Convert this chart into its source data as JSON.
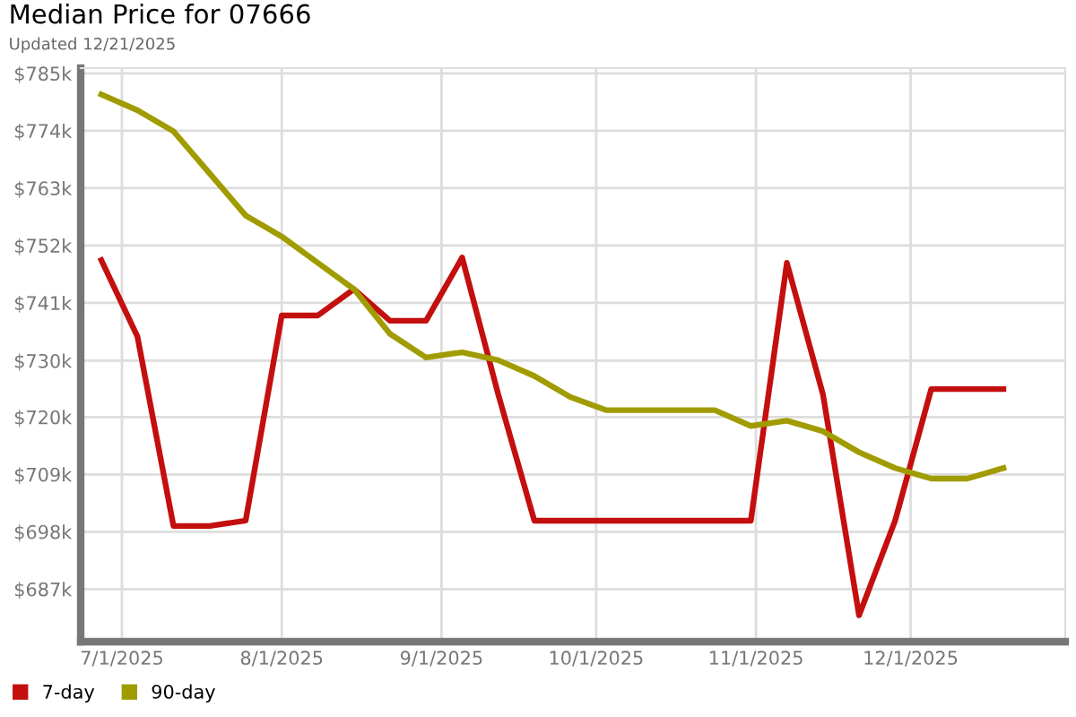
{
  "chart_data": {
    "type": "line",
    "title": "Median Price for 07666",
    "subtitle": "Updated 12/21/2025",
    "x": [
      "2025-06-27",
      "2025-07-04",
      "2025-07-11",
      "2025-07-18",
      "2025-07-25",
      "2025-08-01",
      "2025-08-08",
      "2025-08-15",
      "2025-08-22",
      "2025-08-29",
      "2025-09-05",
      "2025-09-12",
      "2025-09-19",
      "2025-09-26",
      "2025-10-03",
      "2025-10-10",
      "2025-10-17",
      "2025-10-24",
      "2025-10-31",
      "2025-11-07",
      "2025-11-14",
      "2025-11-21",
      "2025-11-28",
      "2025-12-05",
      "2025-12-12",
      "2025-12-19"
    ],
    "series": [
      {
        "name": "7-day",
        "color": "#c40f0f",
        "values": [
          749.5,
          735,
          699,
          699,
          700,
          739,
          739,
          744,
          738,
          738,
          750,
          724,
          700,
          700,
          700,
          700,
          700,
          700,
          700,
          749,
          724,
          682,
          700,
          725,
          725,
          725
        ]
      },
      {
        "name": "90-day",
        "color": "#a09c00",
        "values": [
          781,
          778,
          774,
          766,
          758,
          754,
          749,
          744,
          735.5,
          731,
          732,
          730.5,
          727.5,
          723.5,
          721,
          721,
          721,
          721,
          718,
          719,
          717,
          713,
          710,
          708,
          708,
          710
        ]
      }
    ],
    "xlim": [
      "2025-06-23",
      "2025-12-31"
    ],
    "xticks": [
      {
        "value": "2025-07-01",
        "label": "7/1/2025"
      },
      {
        "value": "2025-08-01",
        "label": "8/1/2025"
      },
      {
        "value": "2025-09-01",
        "label": "9/1/2025"
      },
      {
        "value": "2025-10-01",
        "label": "10/1/2025"
      },
      {
        "value": "2025-11-01",
        "label": "11/1/2025"
      },
      {
        "value": "2025-12-01",
        "label": "12/1/2025"
      }
    ],
    "ylim": [
      677,
      786
    ],
    "yticks": [
      {
        "value": 687,
        "label": "$687k"
      },
      {
        "value": 697.9,
        "label": "$698k"
      },
      {
        "value": 708.8,
        "label": "$709k"
      },
      {
        "value": 719.7,
        "label": "$720k"
      },
      {
        "value": 730.4,
        "label": "$730k"
      },
      {
        "value": 741.4,
        "label": "$741k"
      },
      {
        "value": 752.3,
        "label": "$752k"
      },
      {
        "value": 763.2,
        "label": "$763k"
      },
      {
        "value": 774.1,
        "label": "$774k"
      },
      {
        "value": 785,
        "label": "$785k"
      }
    ],
    "grid": true,
    "legend": "bottom left",
    "marker": "none",
    "line_style": "solid"
  }
}
